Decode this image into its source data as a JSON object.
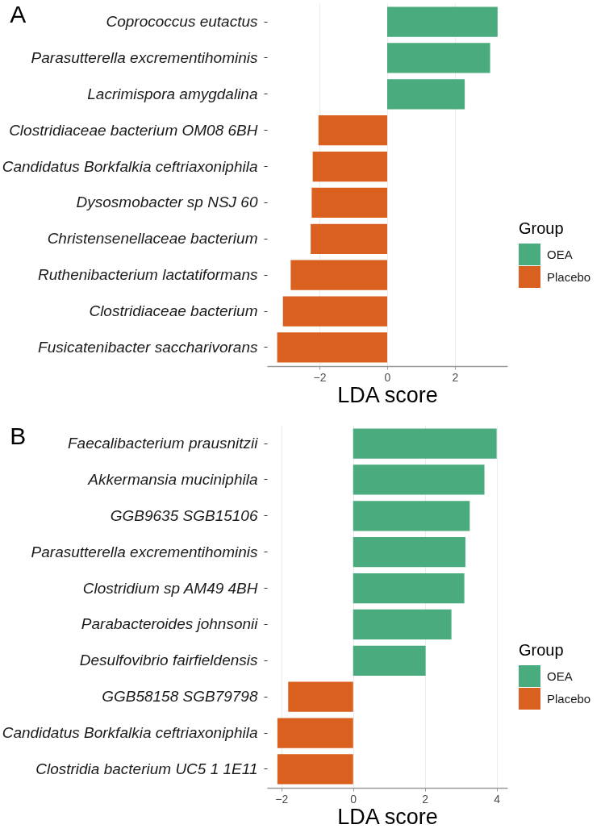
{
  "chart_data": [
    {
      "type": "bar",
      "title": "A",
      "orientation": "horizontal",
      "categories": [
        "Coprococcus eutactus",
        "Parasutterella excrementihominis",
        "Lacrimispora amygdalina",
        "Clostridiaceae bacterium OM08 6BH",
        "Candidatus Borkfalkia ceftriaxoniphila",
        "Dysosmobacter sp NSJ 60",
        "Christensenellaceae bacterium",
        "Ruthenibacterium lactatiformans",
        "Clostridiaceae bacterium",
        "Fusicatenibacter saccharivorans"
      ],
      "series": [
        {
          "name": "OEA",
          "color": "#4aab7f",
          "values": [
            3.26,
            3.04,
            2.29,
            null,
            null,
            null,
            null,
            null,
            null,
            null
          ]
        },
        {
          "name": "Placebo",
          "color": "#d9601e",
          "values": [
            null,
            null,
            null,
            -2.03,
            -2.2,
            -2.23,
            -2.26,
            -2.85,
            -3.08,
            -3.25
          ]
        }
      ],
      "xlabel": "LDA score",
      "legend_title": "Group",
      "legend": "right",
      "xlim": [
        -3.55,
        3.55
      ],
      "xticks": [
        -2,
        0,
        2
      ],
      "grid": "x"
    },
    {
      "type": "bar",
      "title": "B",
      "orientation": "horizontal",
      "categories": [
        "Faecalibacterium prausnitzii",
        "Akkermansia muciniphila",
        "GGB9635 SGB15106",
        "Parasutterella excrementihominis",
        "Clostridium sp AM49 4BH",
        "Parabacteroides johnsonii",
        "Desulfovibrio fairfieldensis",
        "GGB58158 SGB79798",
        "Candidatus Borkfalkia ceftriaxoniphila",
        "Clostridia bacterium UC5 1 1E11"
      ],
      "series": [
        {
          "name": "OEA",
          "color": "#4aab7f",
          "values": [
            4.0,
            3.66,
            3.25,
            3.13,
            3.1,
            2.74,
            2.02,
            null,
            null,
            null
          ]
        },
        {
          "name": "Placebo",
          "color": "#d9601e",
          "values": [
            null,
            null,
            null,
            null,
            null,
            null,
            null,
            -1.81,
            -2.11,
            -2.11
          ]
        }
      ],
      "xlabel": "LDA score",
      "legend_title": "Group",
      "legend": "right",
      "xlim": [
        -2.4,
        4.3
      ],
      "xticks": [
        -2,
        0,
        2,
        4
      ],
      "grid": "x"
    }
  ]
}
